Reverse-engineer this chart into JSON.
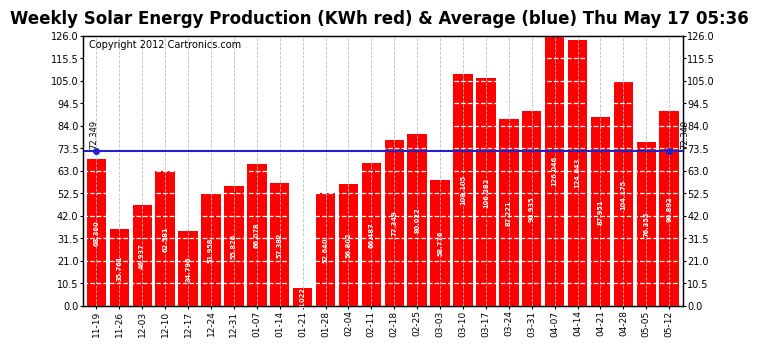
{
  "title": "Weekly Solar Energy Production (KWh red) & Average (blue) Thu May 17 05:36",
  "copyright": "Copyright 2012 Cartronics.com",
  "categories": [
    "11-19",
    "11-26",
    "12-03",
    "12-10",
    "12-17",
    "12-24",
    "12-31",
    "01-07",
    "01-14",
    "01-21",
    "01-28",
    "02-04",
    "02-11",
    "02-18",
    "02-25",
    "03-03",
    "03-10",
    "03-17",
    "03-24",
    "03-31",
    "04-07",
    "04-14",
    "04-21",
    "04-28",
    "05-05",
    "05-12"
  ],
  "values": [
    68.36,
    35.761,
    46.937,
    62.581,
    34.796,
    51.958,
    55.826,
    66.078,
    57.382,
    8.022,
    52.64,
    56.802,
    66.487,
    77.349,
    80.022,
    58.776,
    108.105,
    106.282,
    87.221,
    90.935,
    126.046,
    124.043,
    87.951,
    104.175,
    76.355,
    90.892
  ],
  "average": 72.349,
  "bar_color": "#ff0000",
  "avg_line_color": "#2222cc",
  "background_color": "#ffffff",
  "grid_color": "#bbbbbb",
  "ylim": [
    0,
    126.0
  ],
  "yticks": [
    0.0,
    10.5,
    21.0,
    31.5,
    42.0,
    52.5,
    63.0,
    73.5,
    84.0,
    94.5,
    105.0,
    115.5,
    126.0
  ],
  "title_fontsize": 12,
  "copyright_fontsize": 7,
  "avg_label": "72.349"
}
